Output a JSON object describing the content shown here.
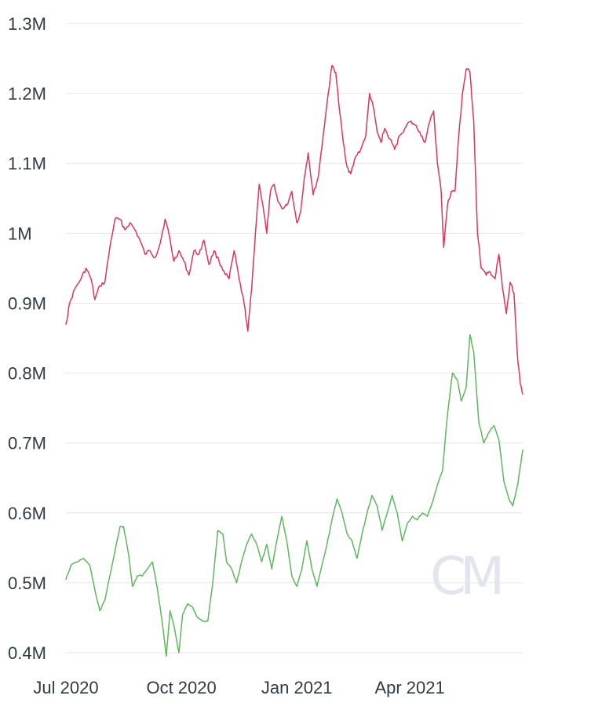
{
  "chart_data": {
    "type": "line",
    "title": "",
    "xlabel": "",
    "ylabel": "",
    "x_ticks": [
      "Jul 2020",
      "Oct 2020",
      "Jan 2021",
      "Apr 2021"
    ],
    "x_tick_dates": [
      "2020-07-01",
      "2020-10-01",
      "2021-01-01",
      "2021-04-01"
    ],
    "x_range": [
      "2020-07-01",
      "2021-06-30"
    ],
    "y_ticks": [
      {
        "value": 400000,
        "label": "0.4M"
      },
      {
        "value": 500000,
        "label": "0.5M"
      },
      {
        "value": 600000,
        "label": "0.6M"
      },
      {
        "value": 700000,
        "label": "0.7M"
      },
      {
        "value": 800000,
        "label": "0.8M"
      },
      {
        "value": 900000,
        "label": "0.9M"
      },
      {
        "value": 1000000,
        "label": "1M"
      },
      {
        "value": 1100000,
        "label": "1.1M"
      },
      {
        "value": 1200000,
        "label": "1.2M"
      },
      {
        "value": 1300000,
        "label": "1.3M"
      }
    ],
    "ylim": [
      400000,
      1300000
    ],
    "grid": true,
    "legend": "none",
    "watermark": "CM",
    "series": [
      {
        "color": "#e0335e",
        "points": [
          [
            "2020-07-01",
            870000
          ],
          [
            "2020-07-04",
            900000
          ],
          [
            "2020-07-08",
            920000
          ],
          [
            "2020-07-13",
            935000
          ],
          [
            "2020-07-17",
            950000
          ],
          [
            "2020-07-21",
            935000
          ],
          [
            "2020-07-24",
            905000
          ],
          [
            "2020-07-28",
            925000
          ],
          [
            "2020-08-01",
            930000
          ],
          [
            "2020-08-05",
            980000
          ],
          [
            "2020-08-09",
            1020000
          ],
          [
            "2020-08-13",
            1020000
          ],
          [
            "2020-08-17",
            1005000
          ],
          [
            "2020-08-21",
            1015000
          ],
          [
            "2020-08-25",
            1005000
          ],
          [
            "2020-08-29",
            990000
          ],
          [
            "2020-09-02",
            970000
          ],
          [
            "2020-09-06",
            975000
          ],
          [
            "2020-09-10",
            965000
          ],
          [
            "2020-09-14",
            985000
          ],
          [
            "2020-09-18",
            1020000
          ],
          [
            "2020-09-21",
            1000000
          ],
          [
            "2020-09-25",
            960000
          ],
          [
            "2020-09-29",
            975000
          ],
          [
            "2020-10-03",
            960000
          ],
          [
            "2020-10-07",
            940000
          ],
          [
            "2020-10-11",
            975000
          ],
          [
            "2020-10-15",
            970000
          ],
          [
            "2020-10-19",
            990000
          ],
          [
            "2020-10-23",
            955000
          ],
          [
            "2020-10-27",
            975000
          ],
          [
            "2020-10-31",
            960000
          ],
          [
            "2020-11-04",
            945000
          ],
          [
            "2020-11-08",
            935000
          ],
          [
            "2020-11-12",
            975000
          ],
          [
            "2020-11-16",
            935000
          ],
          [
            "2020-11-20",
            900000
          ],
          [
            "2020-11-23",
            860000
          ],
          [
            "2020-11-26",
            920000
          ],
          [
            "2020-11-29",
            1000000
          ],
          [
            "2020-12-02",
            1070000
          ],
          [
            "2020-12-05",
            1040000
          ],
          [
            "2020-12-08",
            1000000
          ],
          [
            "2020-12-11",
            1060000
          ],
          [
            "2020-12-14",
            1070000
          ],
          [
            "2020-12-17",
            1045000
          ],
          [
            "2020-12-21",
            1035000
          ],
          [
            "2020-12-24",
            1040000
          ],
          [
            "2020-12-28",
            1060000
          ],
          [
            "2021-01-01",
            1015000
          ],
          [
            "2021-01-04",
            1030000
          ],
          [
            "2021-01-07",
            1080000
          ],
          [
            "2021-01-10",
            1115000
          ],
          [
            "2021-01-14",
            1055000
          ],
          [
            "2021-01-18",
            1080000
          ],
          [
            "2021-01-22",
            1140000
          ],
          [
            "2021-01-26",
            1200000
          ],
          [
            "2021-01-29",
            1240000
          ],
          [
            "2021-02-01",
            1230000
          ],
          [
            "2021-02-04",
            1175000
          ],
          [
            "2021-02-07",
            1130000
          ],
          [
            "2021-02-10",
            1095000
          ],
          [
            "2021-02-13",
            1085000
          ],
          [
            "2021-02-17",
            1110000
          ],
          [
            "2021-02-21",
            1120000
          ],
          [
            "2021-02-25",
            1140000
          ],
          [
            "2021-02-28",
            1200000
          ],
          [
            "2021-03-03",
            1180000
          ],
          [
            "2021-03-06",
            1145000
          ],
          [
            "2021-03-09",
            1130000
          ],
          [
            "2021-03-12",
            1150000
          ],
          [
            "2021-03-16",
            1135000
          ],
          [
            "2021-03-20",
            1120000
          ],
          [
            "2021-03-24",
            1140000
          ],
          [
            "2021-03-28",
            1150000
          ],
          [
            "2021-04-01",
            1160000
          ],
          [
            "2021-04-05",
            1155000
          ],
          [
            "2021-04-09",
            1145000
          ],
          [
            "2021-04-13",
            1130000
          ],
          [
            "2021-04-17",
            1160000
          ],
          [
            "2021-04-20",
            1175000
          ],
          [
            "2021-04-23",
            1100000
          ],
          [
            "2021-04-26",
            1060000
          ],
          [
            "2021-04-28",
            980000
          ],
          [
            "2021-05-01",
            1040000
          ],
          [
            "2021-05-04",
            1060000
          ],
          [
            "2021-05-07",
            1060000
          ],
          [
            "2021-05-10",
            1140000
          ],
          [
            "2021-05-13",
            1200000
          ],
          [
            "2021-05-16",
            1235000
          ],
          [
            "2021-05-19",
            1230000
          ],
          [
            "2021-05-22",
            1160000
          ],
          [
            "2021-05-25",
            1000000
          ],
          [
            "2021-05-28",
            950000
          ],
          [
            "2021-06-01",
            940000
          ],
          [
            "2021-06-04",
            945000
          ],
          [
            "2021-06-08",
            935000
          ],
          [
            "2021-06-11",
            970000
          ],
          [
            "2021-06-14",
            920000
          ],
          [
            "2021-06-17",
            885000
          ],
          [
            "2021-06-20",
            930000
          ],
          [
            "2021-06-23",
            915000
          ],
          [
            "2021-06-26",
            820000
          ],
          [
            "2021-06-28",
            785000
          ],
          [
            "2021-06-30",
            770000
          ]
        ]
      },
      {
        "color": "#5cb85c",
        "points": [
          [
            "2020-07-01",
            505000
          ],
          [
            "2020-07-05",
            525000
          ],
          [
            "2020-07-10",
            530000
          ],
          [
            "2020-07-15",
            535000
          ],
          [
            "2020-07-20",
            525000
          ],
          [
            "2020-07-24",
            490000
          ],
          [
            "2020-07-28",
            460000
          ],
          [
            "2020-08-01",
            475000
          ],
          [
            "2020-08-05",
            510000
          ],
          [
            "2020-08-09",
            545000
          ],
          [
            "2020-08-13",
            580000
          ],
          [
            "2020-08-16",
            580000
          ],
          [
            "2020-08-20",
            540000
          ],
          [
            "2020-08-23",
            495000
          ],
          [
            "2020-08-27",
            510000
          ],
          [
            "2020-08-31",
            510000
          ],
          [
            "2020-09-04",
            520000
          ],
          [
            "2020-09-08",
            530000
          ],
          [
            "2020-09-12",
            490000
          ],
          [
            "2020-09-16",
            440000
          ],
          [
            "2020-09-19",
            395000
          ],
          [
            "2020-09-22",
            460000
          ],
          [
            "2020-09-25",
            440000
          ],
          [
            "2020-09-29",
            400000
          ],
          [
            "2020-10-02",
            455000
          ],
          [
            "2020-10-06",
            470000
          ],
          [
            "2020-10-10",
            465000
          ],
          [
            "2020-10-14",
            450000
          ],
          [
            "2020-10-18",
            445000
          ],
          [
            "2020-10-22",
            445000
          ],
          [
            "2020-10-26",
            500000
          ],
          [
            "2020-10-30",
            575000
          ],
          [
            "2020-11-03",
            570000
          ],
          [
            "2020-11-06",
            530000
          ],
          [
            "2020-11-10",
            520000
          ],
          [
            "2020-11-14",
            500000
          ],
          [
            "2020-11-18",
            530000
          ],
          [
            "2020-11-22",
            555000
          ],
          [
            "2020-11-26",
            570000
          ],
          [
            "2020-11-30",
            555000
          ],
          [
            "2020-12-04",
            530000
          ],
          [
            "2020-12-08",
            555000
          ],
          [
            "2020-12-12",
            520000
          ],
          [
            "2020-12-16",
            560000
          ],
          [
            "2020-12-20",
            595000
          ],
          [
            "2020-12-24",
            560000
          ],
          [
            "2020-12-28",
            510000
          ],
          [
            "2021-01-01",
            495000
          ],
          [
            "2021-01-05",
            520000
          ],
          [
            "2021-01-09",
            560000
          ],
          [
            "2021-01-13",
            520000
          ],
          [
            "2021-01-17",
            495000
          ],
          [
            "2021-01-21",
            525000
          ],
          [
            "2021-01-25",
            555000
          ],
          [
            "2021-01-29",
            590000
          ],
          [
            "2021-02-02",
            620000
          ],
          [
            "2021-02-06",
            600000
          ],
          [
            "2021-02-10",
            570000
          ],
          [
            "2021-02-14",
            560000
          ],
          [
            "2021-02-18",
            535000
          ],
          [
            "2021-02-22",
            570000
          ],
          [
            "2021-02-26",
            600000
          ],
          [
            "2021-03-02",
            625000
          ],
          [
            "2021-03-06",
            610000
          ],
          [
            "2021-03-10",
            575000
          ],
          [
            "2021-03-14",
            600000
          ],
          [
            "2021-03-18",
            625000
          ],
          [
            "2021-03-22",
            600000
          ],
          [
            "2021-03-26",
            560000
          ],
          [
            "2021-03-30",
            585000
          ],
          [
            "2021-04-03",
            595000
          ],
          [
            "2021-04-07",
            590000
          ],
          [
            "2021-04-11",
            600000
          ],
          [
            "2021-04-15",
            595000
          ],
          [
            "2021-04-19",
            615000
          ],
          [
            "2021-04-23",
            640000
          ],
          [
            "2021-04-27",
            660000
          ],
          [
            "2021-05-01",
            740000
          ],
          [
            "2021-05-05",
            800000
          ],
          [
            "2021-05-09",
            790000
          ],
          [
            "2021-05-12",
            760000
          ],
          [
            "2021-05-16",
            780000
          ],
          [
            "2021-05-19",
            855000
          ],
          [
            "2021-05-22",
            830000
          ],
          [
            "2021-05-26",
            730000
          ],
          [
            "2021-05-30",
            700000
          ],
          [
            "2021-06-03",
            715000
          ],
          [
            "2021-06-07",
            725000
          ],
          [
            "2021-06-11",
            705000
          ],
          [
            "2021-06-15",
            645000
          ],
          [
            "2021-06-19",
            620000
          ],
          [
            "2021-06-22",
            610000
          ],
          [
            "2021-06-26",
            640000
          ],
          [
            "2021-06-30",
            690000
          ]
        ]
      }
    ]
  }
}
